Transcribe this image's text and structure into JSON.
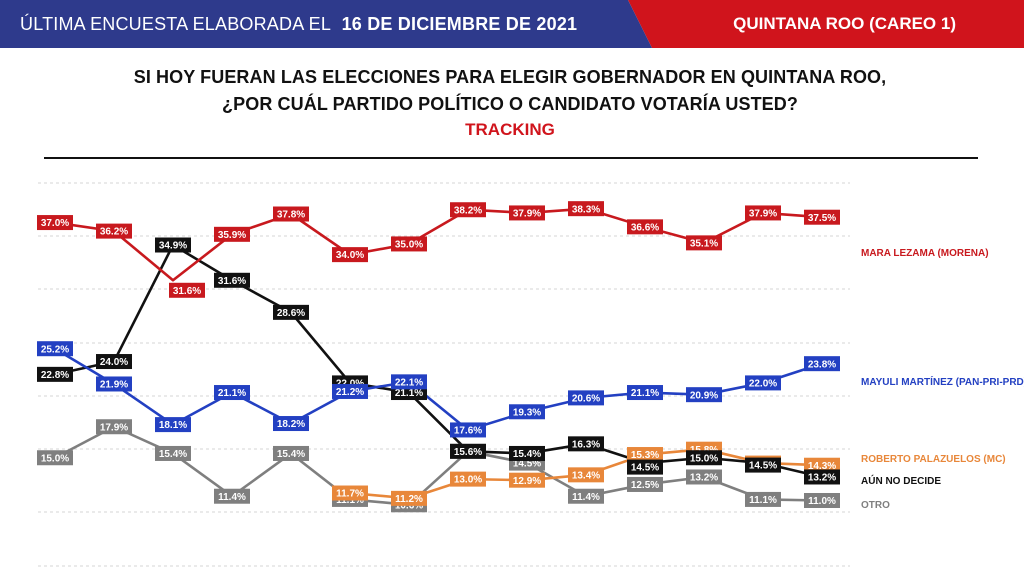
{
  "header": {
    "left_text": "ÚLTIMA ENCUESTA ELABORADA EL",
    "date": "16 DE DICIEMBRE DE 2021",
    "right_text": "QUINTANA ROO (CAREO 1)",
    "colors": {
      "left": "#2e3a8c",
      "right": "#d0141c"
    }
  },
  "title": {
    "line1": "SI HOY FUERAN LAS ELECCIONES PARA ELEGIR GOBERNADOR EN QUINTANA ROO,",
    "line2": "¿POR CUÁL PARTIDO POLÍTICO O CANDIDATO VOTARÍA USTED?",
    "subtitle": "TRACKING"
  },
  "chart_data": {
    "type": "line",
    "grid": true,
    "legend": "right",
    "series": [
      {
        "name": "MARA LEZAMA (MORENA)",
        "color": "#c8191e",
        "values": [
          37.0,
          36.2,
          31.6,
          35.9,
          37.8,
          34.0,
          35.0,
          38.2,
          37.9,
          38.3,
          36.6,
          35.1,
          37.9,
          37.5
        ],
        "labels": [
          "37.0%",
          "36.2%",
          "31.6%",
          "35.9%",
          "37.8%",
          "34.0%",
          "35.0%",
          "38.2%",
          "37.9%",
          "38.3%",
          "36.6%",
          "35.1%",
          "37.9%",
          "37.5%"
        ]
      },
      {
        "name": "MAYULI MARTÍNEZ (PAN-PRI-PRD)",
        "color": "#2340c2",
        "values": [
          25.2,
          21.9,
          18.1,
          21.1,
          18.2,
          21.2,
          22.1,
          17.6,
          19.3,
          20.6,
          21.1,
          20.9,
          22.0,
          23.8
        ],
        "labels": [
          "25.2%",
          "21.9%",
          "18.1%",
          "21.1%",
          "18.2%",
          "21.2%",
          "22.1%",
          "17.6%",
          "19.3%",
          "20.6%",
          "21.1%",
          "20.9%",
          "22.0%",
          "23.8%"
        ]
      },
      {
        "name": "ROBERTO PALAZUELOS (MC)",
        "color": "#e8873a",
        "values": [
          null,
          null,
          null,
          null,
          null,
          11.7,
          11.2,
          13.0,
          12.9,
          13.4,
          15.3,
          15.8,
          14.5,
          14.3
        ],
        "labels": [
          null,
          null,
          null,
          null,
          null,
          "11.7%",
          "11.2%",
          "13.0%",
          "12.9%",
          "13.4%",
          "15.3%",
          "15.8%",
          "14.5%",
          "14.3%"
        ]
      },
      {
        "name": "AÚN NO DECIDE",
        "color": "#111111",
        "values": [
          22.8,
          24.0,
          34.9,
          31.6,
          28.6,
          22.0,
          21.1,
          15.6,
          15.4,
          16.3,
          14.5,
          15.0,
          14.5,
          13.2
        ],
        "labels": [
          "22.8%",
          "24.0%",
          "34.9%",
          "31.6%",
          "28.6%",
          "22.0%",
          "21.1%",
          "15.6%",
          "15.4%",
          "16.3%",
          "14.5%",
          "15.0%",
          "14.5%",
          "13.2%"
        ]
      },
      {
        "name": "OTRO",
        "color": "#7f7f7f",
        "values": [
          15.0,
          17.9,
          15.4,
          11.4,
          15.4,
          11.1,
          10.6,
          15.6,
          14.5,
          11.4,
          12.5,
          13.2,
          11.1,
          11.0
        ],
        "labels": [
          "15.0%",
          "17.9%",
          "15.4%",
          "11.4%",
          "15.4%",
          "11.1%",
          "10.6%",
          "15.6%",
          "14.5%",
          "11.4%",
          "12.5%",
          "13.2%",
          "11.1%",
          "11.0%"
        ]
      }
    ]
  }
}
